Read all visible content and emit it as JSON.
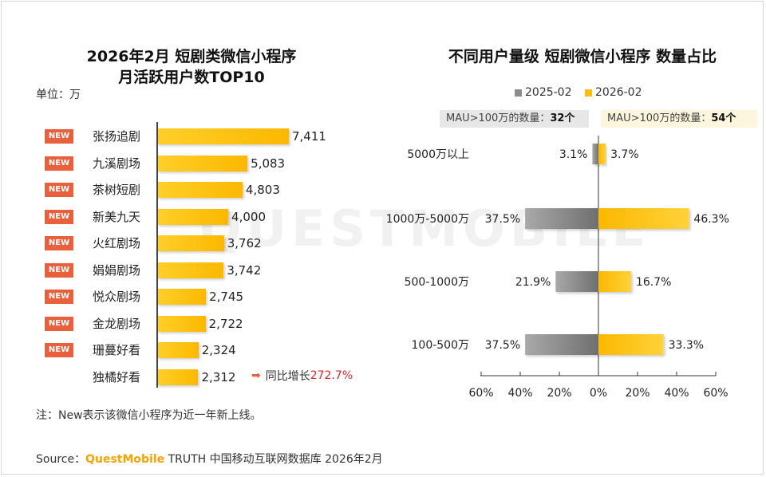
{
  "watermark": "QUESTMOBILE",
  "left": {
    "title_line1": "2026年2月 短剧类微信小程序",
    "title_line2": "月活跃用户数TOP10",
    "unit": "单位：万",
    "growth_label": "同比增长",
    "growth_value": "272.7%",
    "new_label": "NEW"
  },
  "right": {
    "title": "不同用户量级 短剧微信小程序 数量占比",
    "mau_2025_label": "MAU>100万的数量：",
    "mau_2025_value": "32个",
    "mau_2026_label": "MAU>100万的数量：",
    "mau_2026_value": "54个"
  },
  "chart_data": [
    {
      "type": "bar",
      "orientation": "horizontal",
      "title": "2026年2月 短剧类微信小程序 月活跃用户数TOP10",
      "unit": "万",
      "categories": [
        "张扬追剧",
        "九溪剧场",
        "茶树短剧",
        "新美九天",
        "火红剧场",
        "娟娟剧场",
        "悦众剧场",
        "金龙剧场",
        "珊蔓好看",
        "独橘好看"
      ],
      "values": [
        7411,
        5083,
        4803,
        4000,
        3762,
        3742,
        2745,
        2722,
        2324,
        2312
      ],
      "value_labels": [
        "7,411",
        "5,083",
        "4,803",
        "4,000",
        "3,762",
        "3,742",
        "2,745",
        "2,722",
        "2,324",
        "2,312"
      ],
      "is_new": [
        true,
        true,
        true,
        true,
        true,
        true,
        true,
        true,
        true,
        false
      ],
      "xlim": [
        0,
        7411
      ]
    },
    {
      "type": "bar",
      "orientation": "horizontal-diverging",
      "title": "不同用户量级 短剧微信小程序 数量占比",
      "categories": [
        "5000万以上",
        "1000万-5000万",
        "500-1000万",
        "100-500万"
      ],
      "series": [
        {
          "name": "2025-02",
          "color": "#8c8c8c",
          "values": [
            3.1,
            37.5,
            21.9,
            37.5
          ],
          "labels": [
            "3.1%",
            "37.5%",
            "21.9%",
            "37.5%"
          ]
        },
        {
          "name": "2026-02",
          "color": "#fbbd10",
          "values": [
            3.7,
            46.3,
            16.7,
            33.3
          ],
          "labels": [
            "3.7%",
            "46.3%",
            "16.7%",
            "33.3%"
          ]
        }
      ],
      "xlim": [
        -60,
        60
      ],
      "xticks": [
        "60%",
        "40%",
        "20%",
        "0%",
        "20%",
        "40%",
        "60%"
      ],
      "legend_position": "top"
    }
  ],
  "footer": {
    "note": "注：New表示该微信小程序为近一年新上线。",
    "source_label": "Source：",
    "source_brand": "QuestMobile",
    "source_text": " TRUTH 中国移动互联网数据库 2026年2月"
  }
}
